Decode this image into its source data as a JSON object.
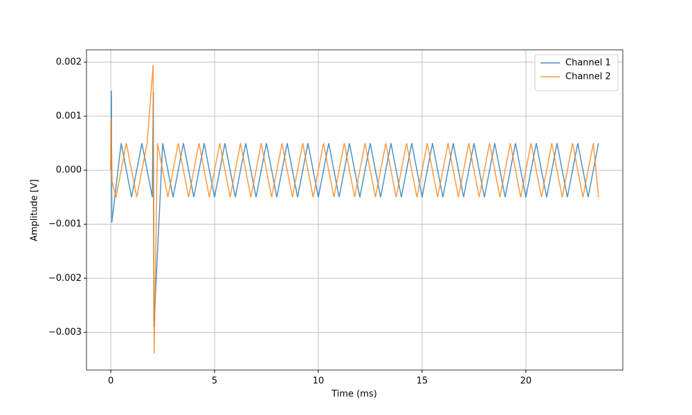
{
  "chart_data": {
    "type": "line",
    "xlabel": "Time (ms)",
    "ylabel": "Amplitude [V]",
    "xlim": [
      -1.17,
      24.67
    ],
    "ylim": [
      -0.0037,
      0.00223
    ],
    "xticks": [
      0,
      5,
      10,
      15,
      20
    ],
    "yticks": [
      {
        "value": -0.003,
        "label": "−0.003"
      },
      {
        "value": -0.002,
        "label": "−0.002"
      },
      {
        "value": -0.001,
        "label": "−0.001"
      },
      {
        "value": 0,
        "label": "0.000"
      },
      {
        "value": 0.001,
        "label": "0.001"
      },
      {
        "value": 0.002,
        "label": "0.002"
      }
    ],
    "grid": true,
    "legend": "upper right",
    "series": [
      {
        "name": "Channel 1",
        "color": "#1f77b4",
        "x": [
          0,
          0.03,
          0.05,
          0.5,
          1,
          1.5,
          2,
          2.05,
          2.08,
          2.5,
          3,
          3.5,
          4,
          4.5,
          5,
          5.5,
          6,
          6.5,
          7,
          7.5,
          8,
          8.5,
          9,
          9.5,
          10,
          10.5,
          11,
          11.5,
          12,
          12.5,
          13,
          13.5,
          14,
          14.5,
          15,
          15.5,
          16,
          16.5,
          17,
          17.5,
          18,
          18.5,
          19,
          19.5,
          20,
          20.5,
          21,
          21.5,
          22,
          22.5,
          23,
          23.5
        ],
        "values": [
          0,
          0.00147,
          -0.00097,
          0.0005,
          -0.0005,
          0.0005,
          -0.0005,
          0.00145,
          -0.0029,
          0.0005,
          -0.0005,
          0.0005,
          -0.0005,
          0.0005,
          -0.0005,
          0.0005,
          -0.0005,
          0.0005,
          -0.0005,
          0.0005,
          -0.0005,
          0.0005,
          -0.0005,
          0.0005,
          -0.0005,
          0.0005,
          -0.0005,
          0.0005,
          -0.0005,
          0.0005,
          -0.0005,
          0.0005,
          -0.0005,
          0.0005,
          -0.0005,
          0.0005,
          -0.0005,
          0.0005,
          -0.0005,
          0.0005,
          -0.0005,
          0.0005,
          -0.0005,
          0.0005,
          -0.0005,
          0.0005,
          -0.0005,
          0.0005,
          -0.0005,
          0.0005,
          -0.0005,
          0.0005
        ]
      },
      {
        "name": "Channel 2",
        "color": "#ff7f0e",
        "x": [
          0,
          0.02,
          0.06,
          0.25,
          0.75,
          1.25,
          1.75,
          2.04,
          2.09,
          2.25,
          2.75,
          3.25,
          3.75,
          4.25,
          4.75,
          5.25,
          5.75,
          6.25,
          6.75,
          7.25,
          7.75,
          8.25,
          8.75,
          9.25,
          9.75,
          10.25,
          10.75,
          11.25,
          11.75,
          12.25,
          12.75,
          13.25,
          13.75,
          14.25,
          14.75,
          15.25,
          15.75,
          16.25,
          16.75,
          17.25,
          17.75,
          18.25,
          18.75,
          19.25,
          19.75,
          20.25,
          20.75,
          21.25,
          21.75,
          22.25,
          22.75,
          23.25,
          23.5
        ],
        "values": [
          0,
          0.00097,
          -0.0002,
          -0.0005,
          0.0005,
          -0.0005,
          0.0005,
          0.00195,
          -0.0034,
          0.0005,
          -0.0005,
          0.0005,
          -0.0005,
          0.0005,
          -0.0005,
          0.0005,
          -0.0005,
          0.0005,
          -0.0005,
          0.0005,
          -0.0005,
          0.0005,
          -0.0005,
          0.0005,
          -0.0005,
          0.0005,
          -0.0005,
          0.0005,
          -0.0005,
          0.0005,
          -0.0005,
          0.0005,
          -0.0005,
          0.0005,
          -0.0005,
          0.0005,
          -0.0005,
          0.0005,
          -0.0005,
          0.0005,
          -0.0005,
          0.0005,
          -0.0005,
          0.0005,
          -0.0005,
          0.0005,
          -0.0005,
          0.0005,
          -0.0005,
          0.0005,
          -0.0005,
          0.0005,
          -0.0005
        ]
      }
    ]
  }
}
